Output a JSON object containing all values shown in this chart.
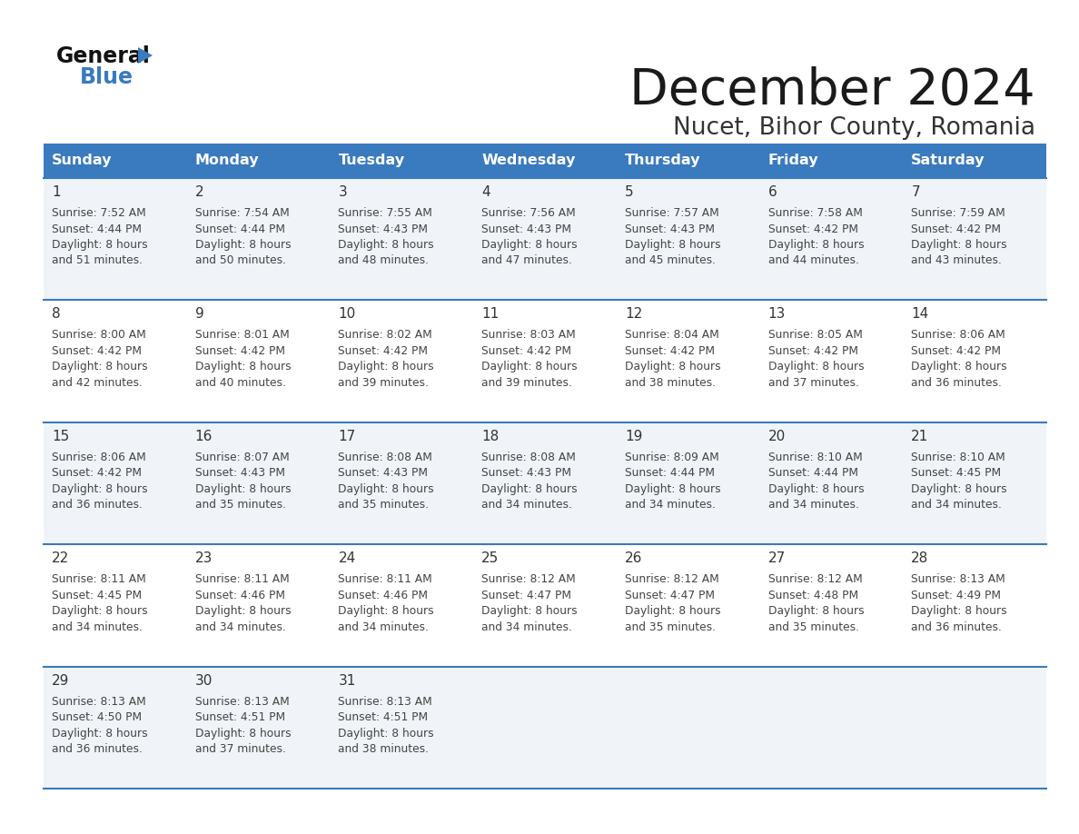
{
  "title": "December 2024",
  "subtitle": "Nucet, Bihor County, Romania",
  "header_bg_color": "#3a7abf",
  "header_text_color": "#ffffff",
  "row_bg_colors": [
    "#f0f4f8",
    "#ffffff",
    "#f0f4f8",
    "#ffffff",
    "#f0f4f8"
  ],
  "day_headers": [
    "Sunday",
    "Monday",
    "Tuesday",
    "Wednesday",
    "Thursday",
    "Friday",
    "Saturday"
  ],
  "bg_color": "#ffffff",
  "divider_color": "#3a7abf",
  "cell_text_color": "#444444",
  "day_num_color": "#333333",
  "title_color": "#1a1a1a",
  "subtitle_color": "#333333",
  "calendar_data": [
    [
      {
        "day": 1,
        "sunrise": "7:52 AM",
        "sunset": "4:44 PM",
        "daylight_hours": 8,
        "daylight_minutes": 51
      },
      {
        "day": 2,
        "sunrise": "7:54 AM",
        "sunset": "4:44 PM",
        "daylight_hours": 8,
        "daylight_minutes": 50
      },
      {
        "day": 3,
        "sunrise": "7:55 AM",
        "sunset": "4:43 PM",
        "daylight_hours": 8,
        "daylight_minutes": 48
      },
      {
        "day": 4,
        "sunrise": "7:56 AM",
        "sunset": "4:43 PM",
        "daylight_hours": 8,
        "daylight_minutes": 47
      },
      {
        "day": 5,
        "sunrise": "7:57 AM",
        "sunset": "4:43 PM",
        "daylight_hours": 8,
        "daylight_minutes": 45
      },
      {
        "day": 6,
        "sunrise": "7:58 AM",
        "sunset": "4:42 PM",
        "daylight_hours": 8,
        "daylight_minutes": 44
      },
      {
        "day": 7,
        "sunrise": "7:59 AM",
        "sunset": "4:42 PM",
        "daylight_hours": 8,
        "daylight_minutes": 43
      }
    ],
    [
      {
        "day": 8,
        "sunrise": "8:00 AM",
        "sunset": "4:42 PM",
        "daylight_hours": 8,
        "daylight_minutes": 42
      },
      {
        "day": 9,
        "sunrise": "8:01 AM",
        "sunset": "4:42 PM",
        "daylight_hours": 8,
        "daylight_minutes": 40
      },
      {
        "day": 10,
        "sunrise": "8:02 AM",
        "sunset": "4:42 PM",
        "daylight_hours": 8,
        "daylight_minutes": 39
      },
      {
        "day": 11,
        "sunrise": "8:03 AM",
        "sunset": "4:42 PM",
        "daylight_hours": 8,
        "daylight_minutes": 39
      },
      {
        "day": 12,
        "sunrise": "8:04 AM",
        "sunset": "4:42 PM",
        "daylight_hours": 8,
        "daylight_minutes": 38
      },
      {
        "day": 13,
        "sunrise": "8:05 AM",
        "sunset": "4:42 PM",
        "daylight_hours": 8,
        "daylight_minutes": 37
      },
      {
        "day": 14,
        "sunrise": "8:06 AM",
        "sunset": "4:42 PM",
        "daylight_hours": 8,
        "daylight_minutes": 36
      }
    ],
    [
      {
        "day": 15,
        "sunrise": "8:06 AM",
        "sunset": "4:42 PM",
        "daylight_hours": 8,
        "daylight_minutes": 36
      },
      {
        "day": 16,
        "sunrise": "8:07 AM",
        "sunset": "4:43 PM",
        "daylight_hours": 8,
        "daylight_minutes": 35
      },
      {
        "day": 17,
        "sunrise": "8:08 AM",
        "sunset": "4:43 PM",
        "daylight_hours": 8,
        "daylight_minutes": 35
      },
      {
        "day": 18,
        "sunrise": "8:08 AM",
        "sunset": "4:43 PM",
        "daylight_hours": 8,
        "daylight_minutes": 34
      },
      {
        "day": 19,
        "sunrise": "8:09 AM",
        "sunset": "4:44 PM",
        "daylight_hours": 8,
        "daylight_minutes": 34
      },
      {
        "day": 20,
        "sunrise": "8:10 AM",
        "sunset": "4:44 PM",
        "daylight_hours": 8,
        "daylight_minutes": 34
      },
      {
        "day": 21,
        "sunrise": "8:10 AM",
        "sunset": "4:45 PM",
        "daylight_hours": 8,
        "daylight_minutes": 34
      }
    ],
    [
      {
        "day": 22,
        "sunrise": "8:11 AM",
        "sunset": "4:45 PM",
        "daylight_hours": 8,
        "daylight_minutes": 34
      },
      {
        "day": 23,
        "sunrise": "8:11 AM",
        "sunset": "4:46 PM",
        "daylight_hours": 8,
        "daylight_minutes": 34
      },
      {
        "day": 24,
        "sunrise": "8:11 AM",
        "sunset": "4:46 PM",
        "daylight_hours": 8,
        "daylight_minutes": 34
      },
      {
        "day": 25,
        "sunrise": "8:12 AM",
        "sunset": "4:47 PM",
        "daylight_hours": 8,
        "daylight_minutes": 34
      },
      {
        "day": 26,
        "sunrise": "8:12 AM",
        "sunset": "4:47 PM",
        "daylight_hours": 8,
        "daylight_minutes": 35
      },
      {
        "day": 27,
        "sunrise": "8:12 AM",
        "sunset": "4:48 PM",
        "daylight_hours": 8,
        "daylight_minutes": 35
      },
      {
        "day": 28,
        "sunrise": "8:13 AM",
        "sunset": "4:49 PM",
        "daylight_hours": 8,
        "daylight_minutes": 36
      }
    ],
    [
      {
        "day": 29,
        "sunrise": "8:13 AM",
        "sunset": "4:50 PM",
        "daylight_hours": 8,
        "daylight_minutes": 36
      },
      {
        "day": 30,
        "sunrise": "8:13 AM",
        "sunset": "4:51 PM",
        "daylight_hours": 8,
        "daylight_minutes": 37
      },
      {
        "day": 31,
        "sunrise": "8:13 AM",
        "sunset": "4:51 PM",
        "daylight_hours": 8,
        "daylight_minutes": 38
      },
      null,
      null,
      null,
      null
    ]
  ]
}
